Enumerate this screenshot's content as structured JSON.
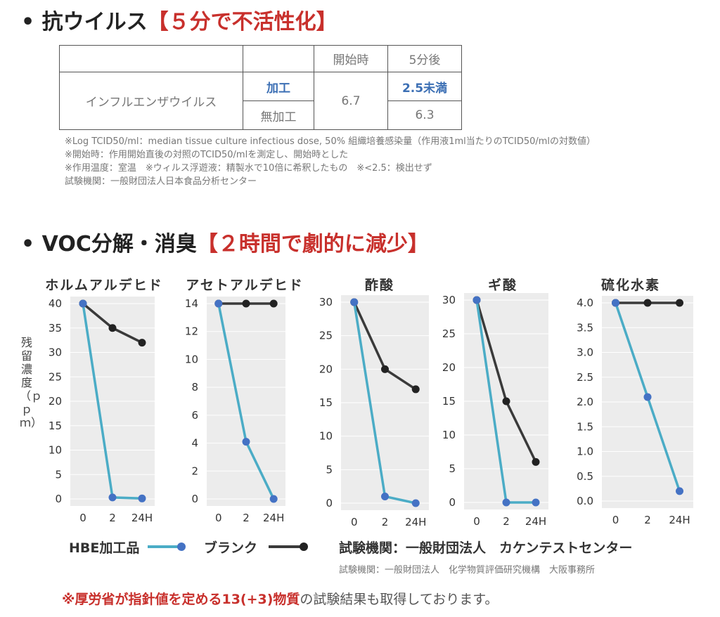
{
  "section1": {
    "bullet": "•",
    "title": "抗ウイルス",
    "accent": "【５分で不活性化】"
  },
  "virus_table": {
    "headers": [
      "",
      "",
      "開始時",
      "5分後"
    ],
    "virus_name": "インフルエンザウイルス",
    "rows": [
      {
        "treatment": "加工",
        "start": "6.7",
        "after": "2.5未満"
      },
      {
        "treatment": "無加工",
        "start": "6.7",
        "after": "6.3"
      }
    ]
  },
  "notes": [
    "※Log TCID50/ml：median tissue culture infectious dose, 50% 組織培養感染量（作用液1ml当たりのTCID50/mlの対数値）",
    "※開始時：作用開始直後の対照のTCID50/mlを測定し、開始時とした",
    "※作用温度：室温　※ウィルス浮遊液：精製水で10倍に希釈したもの　※<2.5：検出せず",
    "試験機関：一般財団法人日本食品分析センター"
  ],
  "section2": {
    "bullet": "•",
    "title": "VOC分解・消臭",
    "accent": "【２時間で劇的に減少】"
  },
  "y_axis_label": "残留濃度（ｐｐｍ）",
  "legend": {
    "hbe": "HBE加工品",
    "blank": "ブランク",
    "credit": "試験機関：一般財団法人　カケンテストセンター"
  },
  "sub_credit": "試験機関：一般財団法人　化学物質評価研究機構　大阪事務所",
  "bottom_note": {
    "red": "※厚労省が指針値を定める13(+3)物質",
    "rest": "の試験結果も取得しております。"
  },
  "colors": {
    "hbe": "#4bacc6",
    "blank": "#3a3a3a",
    "accent": "#c8302c",
    "plot_bg": "#ececec",
    "grid": "#ffffff"
  },
  "chart_data": [
    {
      "type": "line",
      "title": "ホルムアルデヒド",
      "categories": [
        "0",
        "2",
        "24H"
      ],
      "yticks": [
        "0",
        "5",
        "10",
        "15",
        "20",
        "25",
        "30",
        "35",
        "40"
      ],
      "ylim": [
        0,
        40
      ],
      "series": [
        {
          "name": "HBE加工品",
          "values": [
            40,
            0.3,
            0.1
          ]
        },
        {
          "name": "ブランク",
          "values": [
            40,
            35,
            32
          ]
        }
      ]
    },
    {
      "type": "line",
      "title": "アセトアルデヒド",
      "categories": [
        "0",
        "2",
        "24H"
      ],
      "yticks": [
        "0",
        "2",
        "4",
        "6",
        "8",
        "10",
        "12",
        "14"
      ],
      "ylim": [
        0,
        14
      ],
      "series": [
        {
          "name": "HBE加工品",
          "values": [
            14,
            4.1,
            0
          ]
        },
        {
          "name": "ブランク",
          "values": [
            14,
            14,
            14
          ]
        }
      ]
    },
    {
      "type": "line",
      "title": "酢酸",
      "categories": [
        "0",
        "2",
        "24H"
      ],
      "yticks": [
        "0",
        "5",
        "10",
        "15",
        "20",
        "25",
        "30"
      ],
      "ylim": [
        0,
        30
      ],
      "series": [
        {
          "name": "HBE加工品",
          "values": [
            30,
            1,
            0
          ]
        },
        {
          "name": "ブランク",
          "values": [
            30,
            20,
            17
          ]
        }
      ]
    },
    {
      "type": "line",
      "title": "ギ酸",
      "categories": [
        "0",
        "2",
        "24H"
      ],
      "yticks": [
        "0",
        "5",
        "10",
        "15",
        "20",
        "25",
        "30"
      ],
      "ylim": [
        0,
        30
      ],
      "series": [
        {
          "name": "HBE加工品",
          "values": [
            30,
            0,
            0
          ]
        },
        {
          "name": "ブランク",
          "values": [
            30,
            15,
            6
          ]
        }
      ]
    },
    {
      "type": "line",
      "title": "硫化水素",
      "categories": [
        "0",
        "2",
        "24H"
      ],
      "yticks": [
        "0.0",
        "0.5",
        "1.0",
        "1.5",
        "2.0",
        "2.5",
        "3.0",
        "3.5",
        "4.0"
      ],
      "ylim": [
        0,
        4
      ],
      "series": [
        {
          "name": "HBE加工品",
          "values": [
            4.0,
            2.1,
            0.2
          ]
        },
        {
          "name": "ブランク",
          "values": [
            4.0,
            4.0,
            4.0
          ]
        }
      ]
    }
  ]
}
